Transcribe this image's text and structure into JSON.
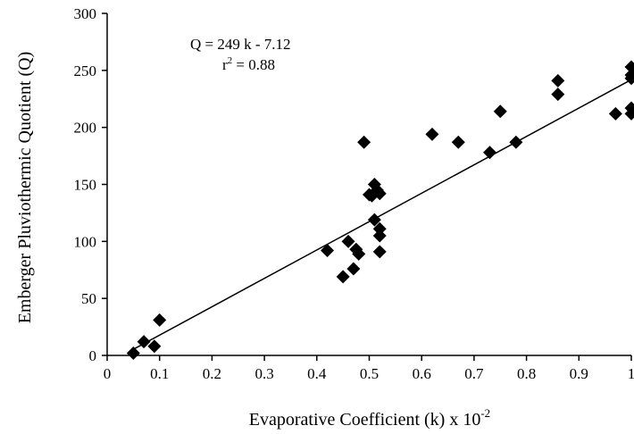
{
  "chart_data": {
    "type": "scatter",
    "title": "",
    "xlabel": "Evaporative Coefficient (k) x 10",
    "xlabel_superscript": "-2",
    "ylabel": "Emberger Pluviothermic Quotient (Q)",
    "xlim": [
      0,
      1
    ],
    "ylim": [
      0,
      300
    ],
    "x_ticks": [
      0,
      0.1,
      0.2,
      0.3,
      0.4,
      0.5,
      0.6,
      0.7,
      0.8,
      0.9,
      1
    ],
    "x_tick_labels": [
      "0",
      "0.1",
      "0.2",
      "0.3",
      "0.4",
      "0.5",
      "0.6",
      "0.7",
      "0.8",
      "0.9",
      "1"
    ],
    "y_ticks": [
      0,
      50,
      100,
      150,
      200,
      250,
      300
    ],
    "y_tick_labels": [
      "0",
      "50",
      "100",
      "150",
      "200",
      "250",
      "300"
    ],
    "grid": false,
    "legend": "none",
    "marker": "diamond",
    "marker_color": "#000000",
    "points": [
      {
        "x": 0.05,
        "y": 2
      },
      {
        "x": 0.07,
        "y": 12
      },
      {
        "x": 0.09,
        "y": 8
      },
      {
        "x": 0.1,
        "y": 31
      },
      {
        "x": 0.42,
        "y": 92
      },
      {
        "x": 0.45,
        "y": 69
      },
      {
        "x": 0.46,
        "y": 100
      },
      {
        "x": 0.47,
        "y": 76
      },
      {
        "x": 0.475,
        "y": 93
      },
      {
        "x": 0.48,
        "y": 89
      },
      {
        "x": 0.49,
        "y": 187
      },
      {
        "x": 0.5,
        "y": 141
      },
      {
        "x": 0.505,
        "y": 140
      },
      {
        "x": 0.51,
        "y": 150
      },
      {
        "x": 0.51,
        "y": 119
      },
      {
        "x": 0.515,
        "y": 145
      },
      {
        "x": 0.52,
        "y": 142
      },
      {
        "x": 0.52,
        "y": 111
      },
      {
        "x": 0.52,
        "y": 105
      },
      {
        "x": 0.52,
        "y": 91
      },
      {
        "x": 0.62,
        "y": 194
      },
      {
        "x": 0.67,
        "y": 187
      },
      {
        "x": 0.73,
        "y": 178
      },
      {
        "x": 0.75,
        "y": 214
      },
      {
        "x": 0.78,
        "y": 187
      },
      {
        "x": 0.86,
        "y": 241
      },
      {
        "x": 0.86,
        "y": 229
      },
      {
        "x": 0.97,
        "y": 212
      },
      {
        "x": 1.0,
        "y": 253
      },
      {
        "x": 1.0,
        "y": 246
      },
      {
        "x": 1.0,
        "y": 243
      },
      {
        "x": 1.0,
        "y": 217
      },
      {
        "x": 1.0,
        "y": 212
      }
    ],
    "regression": {
      "slope": 249,
      "intercept": -7.12,
      "x_range": [
        0.05,
        1.0
      ],
      "equation_label": "Q = 249 k - 7.12",
      "r2_prefix": "r",
      "r2_superscript": "2",
      "r2_suffix": " = 0.88"
    }
  }
}
